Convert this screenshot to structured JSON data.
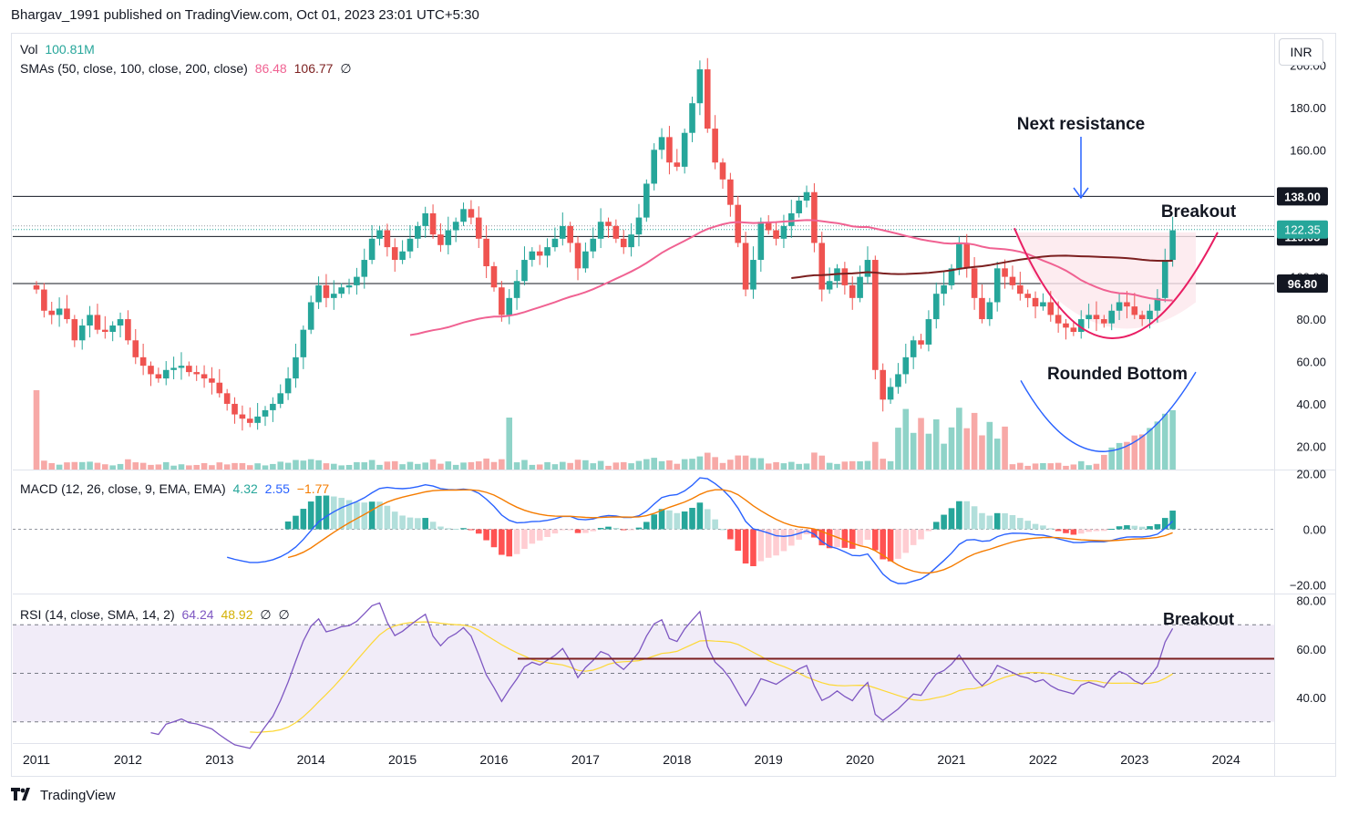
{
  "header": {
    "published": "Bhargav_1991 published on TradingView.com, Oct 01, 2023 23:01 UTC+5:30"
  },
  "currency": "INR",
  "footer": {
    "brand": "TradingView"
  },
  "legends": {
    "vol": {
      "label": "Vol",
      "value": "100.81M"
    },
    "smas": {
      "label": "SMAs (50, close, 100, close, 200, close)",
      "v1": "86.48",
      "v2": "106.77",
      "v3": "∅"
    },
    "macd": {
      "label": "MACD (12, 26, close, 9, EMA, EMA)",
      "v1": "4.32",
      "v2": "2.55",
      "v3": "−1.77"
    },
    "rsi": {
      "label": "RSI (14, close, SMA, 14, 2)",
      "v1": "64.24",
      "v2": "48.92",
      "v3": "∅",
      "v4": "∅"
    }
  },
  "colors": {
    "up": "#26a69a",
    "down": "#ef5350",
    "sma50": "#f06292",
    "sma100": "#7b1f1f",
    "macd": "#2962ff",
    "signal": "#f57c00",
    "rsi": "#7e57c2",
    "rsiMa": "#fdd835",
    "annot": "#e91e63",
    "blue": "#2962ff"
  },
  "annotations": {
    "next_resistance": "Next resistance",
    "breakout": "Breakout",
    "rounded_bottom": "Rounded Bottom",
    "rsi_breakout": "Breakout"
  },
  "chart_data": [
    {
      "type": "candlestick",
      "frequency": "monthly",
      "x_start": "2011-01",
      "xlabels": [
        "2011",
        "2012",
        "2013",
        "2014",
        "2015",
        "2016",
        "2017",
        "2018",
        "2019",
        "2020",
        "2021",
        "2022",
        "2023",
        "2024"
      ],
      "yticks": [
        20,
        40,
        60,
        80,
        100,
        120,
        140,
        160,
        180,
        200
      ],
      "ylim": [
        13,
        206
      ],
      "closes": [
        94,
        84,
        82,
        85,
        80,
        70,
        77,
        82,
        75,
        74,
        77,
        80,
        70,
        62,
        58,
        54,
        52,
        56,
        57,
        58,
        55,
        54,
        52,
        50,
        45,
        40,
        35,
        33,
        31,
        34,
        37,
        40,
        45,
        52,
        62,
        75,
        88,
        96,
        90,
        92,
        95,
        96,
        100,
        108,
        118,
        122,
        114,
        108,
        112,
        118,
        124,
        130,
        120,
        115,
        122,
        126,
        132,
        128,
        118,
        105,
        95,
        82,
        90,
        98,
        108,
        112,
        110,
        114,
        118,
        124,
        116,
        104,
        112,
        118,
        126,
        124,
        118,
        114,
        120,
        128,
        144,
        160,
        166,
        154,
        152,
        168,
        182,
        198,
        170,
        154,
        146,
        134,
        116,
        94,
        108,
        126,
        122,
        118,
        124,
        130,
        136,
        140,
        116,
        94,
        98,
        104,
        96,
        90,
        100,
        108,
        56,
        42,
        48,
        54,
        62,
        70,
        68,
        80,
        92,
        96,
        104,
        116,
        104,
        90,
        80,
        88,
        104,
        100,
        96,
        92,
        90,
        86,
        88,
        82,
        78,
        76,
        74,
        80,
        82,
        80,
        78,
        84,
        88,
        86,
        82,
        80,
        84,
        90,
        108,
        122
      ],
      "sma_values": {
        "sma50": "86.48",
        "sma100": "106.77"
      },
      "horizontal_lines": [
        {
          "price": 138.0,
          "label": "138.00"
        },
        {
          "price": 119.05,
          "label": "119.05"
        },
        {
          "price": 96.8,
          "label": "96.80"
        }
      ],
      "last_price": {
        "price": 122.35,
        "label": "122.35"
      }
    },
    {
      "type": "bar",
      "name": "MACD",
      "yticks": [
        -20,
        0,
        20
      ],
      "last_values": {
        "macd": 4.32,
        "signal": 2.55,
        "hist": -1.77
      }
    },
    {
      "type": "line",
      "name": "RSI",
      "yticks": [
        40,
        60,
        80
      ],
      "bands": [
        30,
        50,
        70
      ],
      "last_values": {
        "rsi": 64.24,
        "ma": 48.92
      }
    }
  ]
}
